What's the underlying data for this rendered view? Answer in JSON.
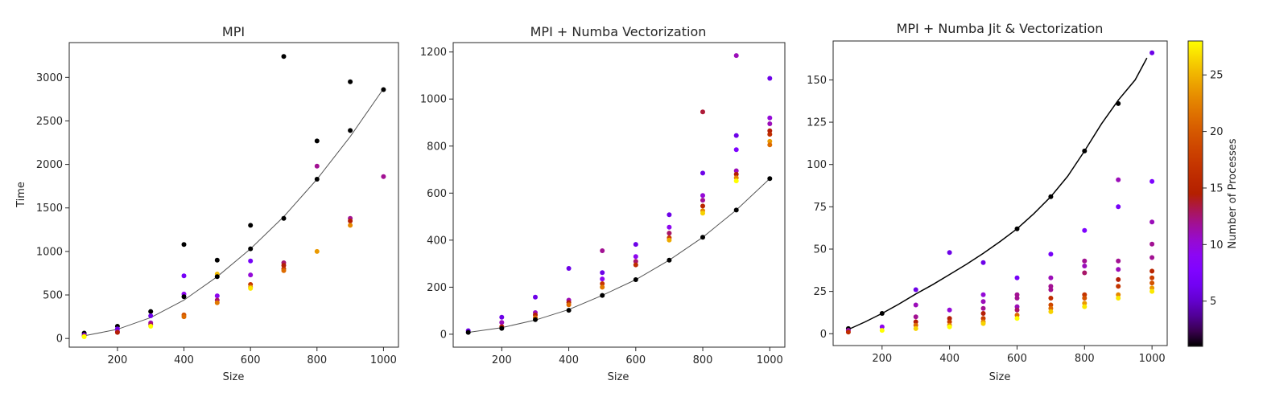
{
  "colorbar": {
    "label": "Number of Processes",
    "range": [
      1,
      28
    ],
    "ticks": [
      5,
      10,
      15,
      20,
      25
    ],
    "colormap": "gnuplot"
  },
  "chart_data": [
    {
      "type": "scatter",
      "title": "MPI",
      "xlabel": "Size",
      "ylabel": "Time",
      "xlim": [
        55,
        1045
      ],
      "ylim": [
        -100,
        3400
      ],
      "xticks": [
        200,
        400,
        600,
        800,
        1000
      ],
      "yticks": [
        0,
        500,
        1000,
        1500,
        2000,
        2500,
        3000
      ],
      "fit": {
        "color": "#555555",
        "points": [
          [
            100,
            30
          ],
          [
            200,
            105
          ],
          [
            300,
            240
          ],
          [
            400,
            440
          ],
          [
            500,
            710
          ],
          [
            600,
            1030
          ],
          [
            700,
            1400
          ],
          [
            800,
            1830
          ],
          [
            900,
            2320
          ],
          [
            1000,
            2870
          ]
        ]
      },
      "points": [
        {
          "x": 100,
          "y": 62,
          "n": 1
        },
        {
          "x": 100,
          "y": 40,
          "n": 2
        },
        {
          "x": 100,
          "y": 30,
          "n": 8
        },
        {
          "x": 100,
          "y": 25,
          "n": 20
        },
        {
          "x": 100,
          "y": 20,
          "n": 28
        },
        {
          "x": 200,
          "y": 140,
          "n": 1
        },
        {
          "x": 200,
          "y": 110,
          "n": 2
        },
        {
          "x": 200,
          "y": 80,
          "n": 8
        },
        {
          "x": 200,
          "y": 70,
          "n": 12
        },
        {
          "x": 300,
          "y": 310,
          "n": 1
        },
        {
          "x": 300,
          "y": 260,
          "n": 2
        },
        {
          "x": 300,
          "y": 180,
          "n": 8
        },
        {
          "x": 300,
          "y": 160,
          "n": 10
        },
        {
          "x": 300,
          "y": 140,
          "n": 28
        },
        {
          "x": 400,
          "y": 1080,
          "n": 1
        },
        {
          "x": 400,
          "y": 720,
          "n": 3
        },
        {
          "x": 400,
          "y": 510,
          "n": 6
        },
        {
          "x": 400,
          "y": 480,
          "n": 1
        },
        {
          "x": 400,
          "y": 270,
          "n": 18
        },
        {
          "x": 400,
          "y": 250,
          "n": 20
        },
        {
          "x": 500,
          "y": 900,
          "n": 1
        },
        {
          "x": 500,
          "y": 740,
          "n": 25
        },
        {
          "x": 500,
          "y": 710,
          "n": 1
        },
        {
          "x": 500,
          "y": 490,
          "n": 6
        },
        {
          "x": 500,
          "y": 440,
          "n": 10
        },
        {
          "x": 500,
          "y": 410,
          "n": 21
        },
        {
          "x": 600,
          "y": 1300,
          "n": 1
        },
        {
          "x": 600,
          "y": 1030,
          "n": 1
        },
        {
          "x": 600,
          "y": 890,
          "n": 3
        },
        {
          "x": 600,
          "y": 730,
          "n": 7
        },
        {
          "x": 600,
          "y": 620,
          "n": 15
        },
        {
          "x": 600,
          "y": 590,
          "n": 23
        },
        {
          "x": 600,
          "y": 575,
          "n": 27
        },
        {
          "x": 700,
          "y": 3240,
          "n": 1
        },
        {
          "x": 700,
          "y": 1380,
          "n": 1
        },
        {
          "x": 700,
          "y": 870,
          "n": 10
        },
        {
          "x": 700,
          "y": 840,
          "n": 12
        },
        {
          "x": 700,
          "y": 800,
          "n": 15
        },
        {
          "x": 700,
          "y": 780,
          "n": 20
        },
        {
          "x": 800,
          "y": 2270,
          "n": 1
        },
        {
          "x": 800,
          "y": 1980,
          "n": 9
        },
        {
          "x": 800,
          "y": 1830,
          "n": 1
        },
        {
          "x": 800,
          "y": 1000,
          "n": 23
        },
        {
          "x": 900,
          "y": 2950,
          "n": 1
        },
        {
          "x": 900,
          "y": 2390,
          "n": 1
        },
        {
          "x": 900,
          "y": 1380,
          "n": 9
        },
        {
          "x": 900,
          "y": 1350,
          "n": 12
        },
        {
          "x": 900,
          "y": 1300,
          "n": 22
        },
        {
          "x": 1000,
          "y": 2860,
          "n": 1
        },
        {
          "x": 1000,
          "y": 1860,
          "n": 9
        }
      ]
    },
    {
      "type": "scatter",
      "title": "MPI + Numba Vectorization",
      "xlabel": "Size",
      "ylabel": "",
      "xlim": [
        55,
        1045
      ],
      "ylim": [
        -55,
        1240
      ],
      "xticks": [
        200,
        400,
        600,
        800,
        1000
      ],
      "yticks": [
        0,
        200,
        400,
        600,
        800,
        1000,
        1200
      ],
      "fit": {
        "color": "#555555",
        "points": [
          [
            100,
            8
          ],
          [
            200,
            28
          ],
          [
            300,
            60
          ],
          [
            400,
            105
          ],
          [
            500,
            165
          ],
          [
            600,
            232
          ],
          [
            700,
            315
          ],
          [
            800,
            412
          ],
          [
            900,
            528
          ],
          [
            1000,
            662
          ]
        ]
      },
      "points": [
        {
          "x": 100,
          "y": 15,
          "n": 2
        },
        {
          "x": 100,
          "y": 8,
          "n": 1
        },
        {
          "x": 200,
          "y": 72,
          "n": 2
        },
        {
          "x": 200,
          "y": 50,
          "n": 8
        },
        {
          "x": 200,
          "y": 32,
          "n": 12
        },
        {
          "x": 200,
          "y": 25,
          "n": 1
        },
        {
          "x": 300,
          "y": 158,
          "n": 2
        },
        {
          "x": 300,
          "y": 92,
          "n": 8
        },
        {
          "x": 300,
          "y": 82,
          "n": 12
        },
        {
          "x": 300,
          "y": 70,
          "n": 20
        },
        {
          "x": 300,
          "y": 62,
          "n": 1
        },
        {
          "x": 400,
          "y": 280,
          "n": 2
        },
        {
          "x": 400,
          "y": 145,
          "n": 8
        },
        {
          "x": 400,
          "y": 135,
          "n": 12
        },
        {
          "x": 400,
          "y": 125,
          "n": 20
        },
        {
          "x": 400,
          "y": 102,
          "n": 1
        },
        {
          "x": 500,
          "y": 355,
          "n": 9
        },
        {
          "x": 500,
          "y": 262,
          "n": 2
        },
        {
          "x": 500,
          "y": 235,
          "n": 6
        },
        {
          "x": 500,
          "y": 215,
          "n": 15
        },
        {
          "x": 500,
          "y": 200,
          "n": 21
        },
        {
          "x": 500,
          "y": 165,
          "n": 1
        },
        {
          "x": 600,
          "y": 382,
          "n": 2
        },
        {
          "x": 600,
          "y": 330,
          "n": 6
        },
        {
          "x": 600,
          "y": 310,
          "n": 10
        },
        {
          "x": 600,
          "y": 295,
          "n": 14
        },
        {
          "x": 600,
          "y": 232,
          "n": 1
        },
        {
          "x": 700,
          "y": 508,
          "n": 2
        },
        {
          "x": 700,
          "y": 455,
          "n": 6
        },
        {
          "x": 700,
          "y": 430,
          "n": 10
        },
        {
          "x": 700,
          "y": 410,
          "n": 16
        },
        {
          "x": 700,
          "y": 400,
          "n": 24
        },
        {
          "x": 700,
          "y": 315,
          "n": 1
        },
        {
          "x": 800,
          "y": 945,
          "n": 11
        },
        {
          "x": 800,
          "y": 685,
          "n": 2
        },
        {
          "x": 800,
          "y": 590,
          "n": 7
        },
        {
          "x": 800,
          "y": 570,
          "n": 9
        },
        {
          "x": 800,
          "y": 545,
          "n": 13
        },
        {
          "x": 800,
          "y": 525,
          "n": 22
        },
        {
          "x": 800,
          "y": 515,
          "n": 26
        },
        {
          "x": 800,
          "y": 412,
          "n": 1
        },
        {
          "x": 900,
          "y": 1185,
          "n": 8
        },
        {
          "x": 900,
          "y": 845,
          "n": 2
        },
        {
          "x": 900,
          "y": 785,
          "n": 4
        },
        {
          "x": 900,
          "y": 695,
          "n": 8
        },
        {
          "x": 900,
          "y": 680,
          "n": 12
        },
        {
          "x": 900,
          "y": 665,
          "n": 22
        },
        {
          "x": 900,
          "y": 652,
          "n": 28
        },
        {
          "x": 900,
          "y": 528,
          "n": 1
        },
        {
          "x": 1000,
          "y": 1088,
          "n": 2
        },
        {
          "x": 1000,
          "y": 920,
          "n": 7
        },
        {
          "x": 1000,
          "y": 895,
          "n": 8
        },
        {
          "x": 1000,
          "y": 865,
          "n": 12
        },
        {
          "x": 1000,
          "y": 850,
          "n": 14
        },
        {
          "x": 1000,
          "y": 820,
          "n": 23
        },
        {
          "x": 1000,
          "y": 805,
          "n": 20
        },
        {
          "x": 1000,
          "y": 662,
          "n": 1
        }
      ]
    },
    {
      "type": "scatter",
      "title": "MPI + Numba Jit & Vectorization",
      "xlabel": "Size",
      "ylabel": "",
      "xlim": [
        55,
        1045
      ],
      "ylim": [
        -7,
        173
      ],
      "xticks": [
        200,
        400,
        600,
        800,
        1000
      ],
      "yticks": [
        0,
        25,
        50,
        75,
        100,
        125,
        150
      ],
      "fit": {
        "color": "#000000",
        "points": [
          [
            100,
            2.5
          ],
          [
            150,
            7
          ],
          [
            200,
            12
          ],
          [
            250,
            17.5
          ],
          [
            300,
            23.5
          ],
          [
            350,
            29
          ],
          [
            400,
            35
          ],
          [
            450,
            41
          ],
          [
            500,
            47.5
          ],
          [
            550,
            54.5
          ],
          [
            600,
            62
          ],
          [
            650,
            71
          ],
          [
            700,
            81
          ],
          [
            750,
            93
          ],
          [
            800,
            108
          ],
          [
            850,
            124
          ],
          [
            900,
            138
          ],
          [
            950,
            150
          ],
          [
            985,
            163
          ]
        ]
      },
      "points": [
        {
          "x": 100,
          "y": 3,
          "n": 1
        },
        {
          "x": 100,
          "y": 2,
          "n": 8
        },
        {
          "x": 100,
          "y": 1,
          "n": 14
        },
        {
          "x": 200,
          "y": 12,
          "n": 1
        },
        {
          "x": 200,
          "y": 4,
          "n": 6
        },
        {
          "x": 200,
          "y": 2,
          "n": 28
        },
        {
          "x": 300,
          "y": 26,
          "n": 2
        },
        {
          "x": 300,
          "y": 17,
          "n": 8
        },
        {
          "x": 300,
          "y": 10,
          "n": 9
        },
        {
          "x": 300,
          "y": 7,
          "n": 12
        },
        {
          "x": 300,
          "y": 5,
          "n": 20
        },
        {
          "x": 300,
          "y": 3,
          "n": 26
        },
        {
          "x": 400,
          "y": 48,
          "n": 2
        },
        {
          "x": 400,
          "y": 14,
          "n": 7
        },
        {
          "x": 400,
          "y": 9,
          "n": 12
        },
        {
          "x": 400,
          "y": 7,
          "n": 16
        },
        {
          "x": 400,
          "y": 5,
          "n": 22
        },
        {
          "x": 400,
          "y": 4,
          "n": 28
        },
        {
          "x": 500,
          "y": 42,
          "n": 2
        },
        {
          "x": 500,
          "y": 23,
          "n": 7
        },
        {
          "x": 500,
          "y": 19,
          "n": 8
        },
        {
          "x": 500,
          "y": 15,
          "n": 9
        },
        {
          "x": 500,
          "y": 12,
          "n": 12
        },
        {
          "x": 500,
          "y": 9,
          "n": 16
        },
        {
          "x": 500,
          "y": 7,
          "n": 22
        },
        {
          "x": 500,
          "y": 6,
          "n": 26
        },
        {
          "x": 600,
          "y": 62,
          "n": 1
        },
        {
          "x": 600,
          "y": 33,
          "n": 3
        },
        {
          "x": 600,
          "y": 23,
          "n": 9
        },
        {
          "x": 600,
          "y": 21,
          "n": 9
        },
        {
          "x": 600,
          "y": 16,
          "n": 8
        },
        {
          "x": 600,
          "y": 14,
          "n": 10
        },
        {
          "x": 600,
          "y": 11,
          "n": 20
        },
        {
          "x": 600,
          "y": 9,
          "n": 28
        },
        {
          "x": 700,
          "y": 81,
          "n": 1
        },
        {
          "x": 700,
          "y": 47,
          "n": 3
        },
        {
          "x": 700,
          "y": 33,
          "n": 8
        },
        {
          "x": 700,
          "y": 28,
          "n": 9
        },
        {
          "x": 700,
          "y": 26,
          "n": 9
        },
        {
          "x": 700,
          "y": 21,
          "n": 14
        },
        {
          "x": 700,
          "y": 17,
          "n": 17
        },
        {
          "x": 700,
          "y": 15,
          "n": 20
        },
        {
          "x": 700,
          "y": 13,
          "n": 26
        },
        {
          "x": 800,
          "y": 108,
          "n": 1
        },
        {
          "x": 800,
          "y": 61,
          "n": 4
        },
        {
          "x": 800,
          "y": 43,
          "n": 9
        },
        {
          "x": 800,
          "y": 40,
          "n": 8
        },
        {
          "x": 800,
          "y": 36,
          "n": 10
        },
        {
          "x": 800,
          "y": 23,
          "n": 15
        },
        {
          "x": 800,
          "y": 21,
          "n": 18
        },
        {
          "x": 800,
          "y": 18,
          "n": 23
        },
        {
          "x": 800,
          "y": 16,
          "n": 27
        },
        {
          "x": 900,
          "y": 136,
          "n": 1
        },
        {
          "x": 900,
          "y": 91,
          "n": 8
        },
        {
          "x": 900,
          "y": 75,
          "n": 3
        },
        {
          "x": 900,
          "y": 43,
          "n": 9
        },
        {
          "x": 900,
          "y": 38,
          "n": 8
        },
        {
          "x": 900,
          "y": 32,
          "n": 12
        },
        {
          "x": 900,
          "y": 28,
          "n": 15
        },
        {
          "x": 900,
          "y": 23,
          "n": 22
        },
        {
          "x": 900,
          "y": 21,
          "n": 27
        },
        {
          "x": 1000,
          "y": 166,
          "n": 2
        },
        {
          "x": 1000,
          "y": 90,
          "n": 4
        },
        {
          "x": 1000,
          "y": 66,
          "n": 8
        },
        {
          "x": 1000,
          "y": 53,
          "n": 9
        },
        {
          "x": 1000,
          "y": 45,
          "n": 9
        },
        {
          "x": 1000,
          "y": 37,
          "n": 13
        },
        {
          "x": 1000,
          "y": 33,
          "n": 16
        },
        {
          "x": 1000,
          "y": 30,
          "n": 18
        },
        {
          "x": 1000,
          "y": 27,
          "n": 23
        },
        {
          "x": 1000,
          "y": 25,
          "n": 27
        }
      ]
    }
  ]
}
